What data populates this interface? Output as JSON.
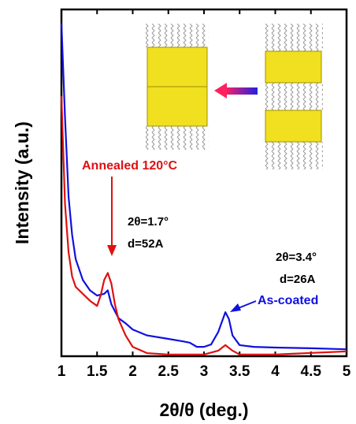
{
  "chart_data": {
    "type": "line",
    "xlabel": "2θ/θ (deg.)",
    "ylabel": "Intensity (a.u.)",
    "xlim": [
      1,
      5
    ],
    "xticks": [
      1,
      1.5,
      2,
      2.5,
      3,
      3.5,
      4,
      4.5,
      5
    ],
    "ylim": [
      0,
      100
    ],
    "annotations": [
      "Annealed 120°C",
      "2θ=1.7°",
      "d=52A",
      "2θ=3.4°",
      "d=26A",
      "As-coated"
    ],
    "series": [
      {
        "color": "#1010e0",
        "x": [
          1.0,
          1.05,
          1.1,
          1.15,
          1.2,
          1.3,
          1.4,
          1.5,
          1.6,
          1.65,
          1.7,
          1.8,
          1.9,
          2.0,
          2.2,
          2.5,
          2.7,
          2.8,
          2.9,
          3.0,
          3.1,
          3.2,
          3.3,
          3.35,
          3.4,
          3.5,
          3.7,
          4.0,
          4.5,
          5.0
        ],
        "values": [
          96,
          69,
          46,
          35,
          28,
          22,
          19,
          17.5,
          18,
          19,
          15,
          11,
          9.5,
          7.7,
          6,
          5,
          4.3,
          3.9,
          2.7,
          2.7,
          3.4,
          7,
          12.7,
          10.7,
          6,
          3.2,
          2.7,
          2.5,
          2.3,
          2
        ]
      },
      {
        "color": "#e01010",
        "x": [
          1.0,
          1.05,
          1.1,
          1.15,
          1.2,
          1.3,
          1.4,
          1.5,
          1.55,
          1.6,
          1.65,
          1.7,
          1.75,
          1.8,
          1.9,
          2.0,
          2.2,
          2.5,
          3.0,
          3.2,
          3.3,
          3.4,
          3.5,
          4.0,
          5.0
        ],
        "values": [
          75,
          44,
          30,
          23,
          20,
          18,
          16,
          14.5,
          17.5,
          22,
          24,
          21,
          15,
          10.7,
          6,
          2.7,
          0.9,
          0.5,
          0.5,
          1.6,
          3.2,
          1.6,
          0.5,
          0.5,
          1.4
        ]
      }
    ]
  }
}
